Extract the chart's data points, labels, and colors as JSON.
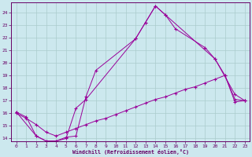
{
  "xlabel": "Windchill (Refroidissement éolien,°C)",
  "bg_color": "#cce8ee",
  "line_color": "#990099",
  "grid_color": "#aacccc",
  "xlim": [
    -0.5,
    23.5
  ],
  "ylim": [
    13.8,
    24.8
  ],
  "yticks": [
    14,
    15,
    16,
    17,
    18,
    19,
    20,
    21,
    22,
    23,
    24
  ],
  "xticks": [
    0,
    1,
    2,
    3,
    4,
    5,
    6,
    7,
    8,
    9,
    10,
    11,
    12,
    13,
    14,
    15,
    16,
    17,
    18,
    19,
    20,
    21,
    22,
    23
  ],
  "line1_x": [
    0,
    1,
    2,
    3,
    4,
    5,
    6,
    7,
    8,
    12,
    13,
    14,
    15,
    16,
    19,
    20,
    21,
    22,
    23
  ],
  "line1_y": [
    16.1,
    15.7,
    14.2,
    13.8,
    13.8,
    14.1,
    14.2,
    17.3,
    19.4,
    21.9,
    23.2,
    24.5,
    23.8,
    22.7,
    21.2,
    20.3,
    19.0,
    17.1,
    17.0
  ],
  "line2_x": [
    0,
    2,
    3,
    4,
    5,
    6,
    7,
    12,
    13,
    14,
    15,
    20,
    22,
    23
  ],
  "line2_y": [
    16.1,
    14.2,
    13.8,
    13.8,
    14.0,
    16.4,
    17.1,
    21.9,
    23.2,
    24.5,
    23.8,
    20.3,
    17.5,
    17.0
  ],
  "line3_x": [
    0,
    1,
    2,
    3,
    4,
    5,
    6,
    7,
    8,
    9,
    10,
    11,
    12,
    13,
    14,
    15,
    16,
    17,
    18,
    19,
    20,
    21,
    22,
    23
  ],
  "line3_y": [
    16.0,
    15.6,
    15.1,
    14.5,
    14.2,
    14.5,
    14.8,
    15.1,
    15.4,
    15.6,
    15.9,
    16.2,
    16.5,
    16.8,
    17.1,
    17.3,
    17.6,
    17.9,
    18.1,
    18.4,
    18.7,
    19.0,
    16.9,
    17.0
  ]
}
